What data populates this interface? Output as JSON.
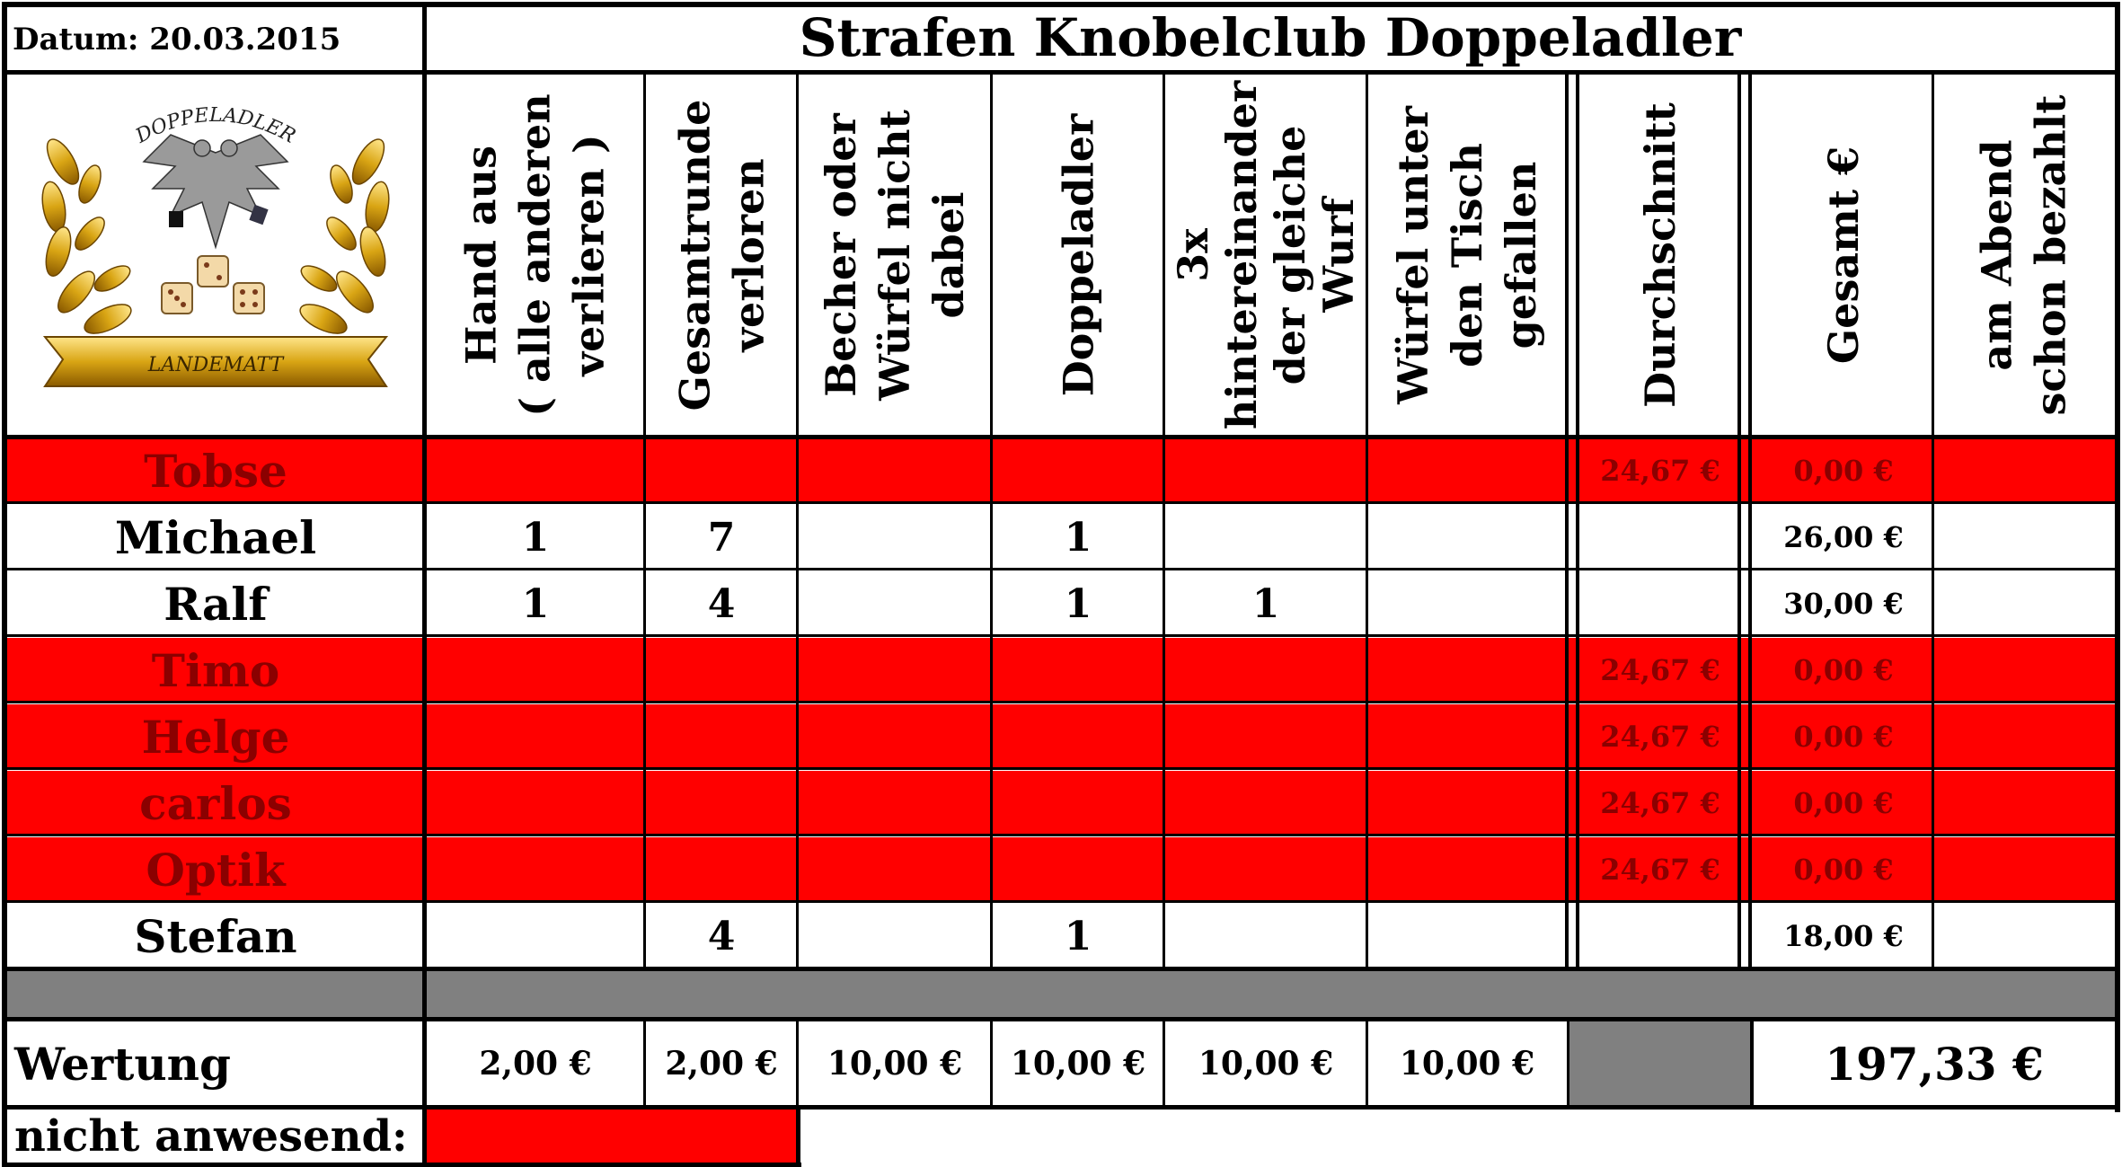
{
  "sheet": {
    "date_label": "Datum: 20.03.2015",
    "title": "Strafen Knobelclub Doppeladler"
  },
  "logo": {
    "top_text": "DOPPELADLER",
    "banner_text": "LANDEMATT"
  },
  "columns": [
    "Hand aus\n( alle anderen\nverlieren )",
    "Gesamtrunde\nverloren",
    "Becher oder\nWürfel nicht\ndabei",
    "Doppeladler",
    "3x\nhintereinander\nder gleiche\nWurf",
    "Würfel unter\nden Tisch\ngefallen",
    "Durchschnitt",
    "Gesamt €",
    "am Abend\nschon bezahlt"
  ],
  "rows": [
    {
      "name": "Tobse",
      "absent": true,
      "c1": "",
      "c2": "",
      "c3": "",
      "c4": "",
      "c5": "",
      "c6": "",
      "avg": "24,67 €",
      "total": "0,00 €",
      "paid": ""
    },
    {
      "name": "Michael",
      "absent": false,
      "c1": "1",
      "c2": "7",
      "c3": "",
      "c4": "1",
      "c5": "",
      "c6": "",
      "avg": "",
      "total": "26,00 €",
      "paid": ""
    },
    {
      "name": "Ralf",
      "absent": false,
      "c1": "1",
      "c2": "4",
      "c3": "",
      "c4": "1",
      "c5": "1",
      "c6": "",
      "avg": "",
      "total": "30,00 €",
      "paid": ""
    },
    {
      "name": "Timo",
      "absent": true,
      "c1": "",
      "c2": "",
      "c3": "",
      "c4": "",
      "c5": "",
      "c6": "",
      "avg": "24,67 €",
      "total": "0,00 €",
      "paid": ""
    },
    {
      "name": "Helge",
      "absent": true,
      "c1": "",
      "c2": "",
      "c3": "",
      "c4": "",
      "c5": "",
      "c6": "",
      "avg": "24,67 €",
      "total": "0,00 €",
      "paid": ""
    },
    {
      "name": "carlos",
      "absent": true,
      "c1": "",
      "c2": "",
      "c3": "",
      "c4": "",
      "c5": "",
      "c6": "",
      "avg": "24,67 €",
      "total": "0,00 €",
      "paid": ""
    },
    {
      "name": "Optik",
      "absent": true,
      "c1": "",
      "c2": "",
      "c3": "",
      "c4": "",
      "c5": "",
      "c6": "",
      "avg": "24,67 €",
      "total": "0,00 €",
      "paid": ""
    },
    {
      "name": "Stefan",
      "absent": false,
      "c1": "",
      "c2": "4",
      "c3": "",
      "c4": "1",
      "c5": "",
      "c6": "",
      "avg": "",
      "total": "18,00 €",
      "paid": ""
    }
  ],
  "wertung": {
    "label": "Wertung",
    "values": [
      "2,00 €",
      "2,00 €",
      "10,00 €",
      "10,00 €",
      "10,00 €",
      "10,00 €"
    ],
    "grand_total": "197,33 €"
  },
  "legend": {
    "absent_label": "nicht anwesend:"
  },
  "colors": {
    "absent_row": "#ff0000",
    "absent_text": "#8b0000",
    "separator_grey": "#808080"
  }
}
